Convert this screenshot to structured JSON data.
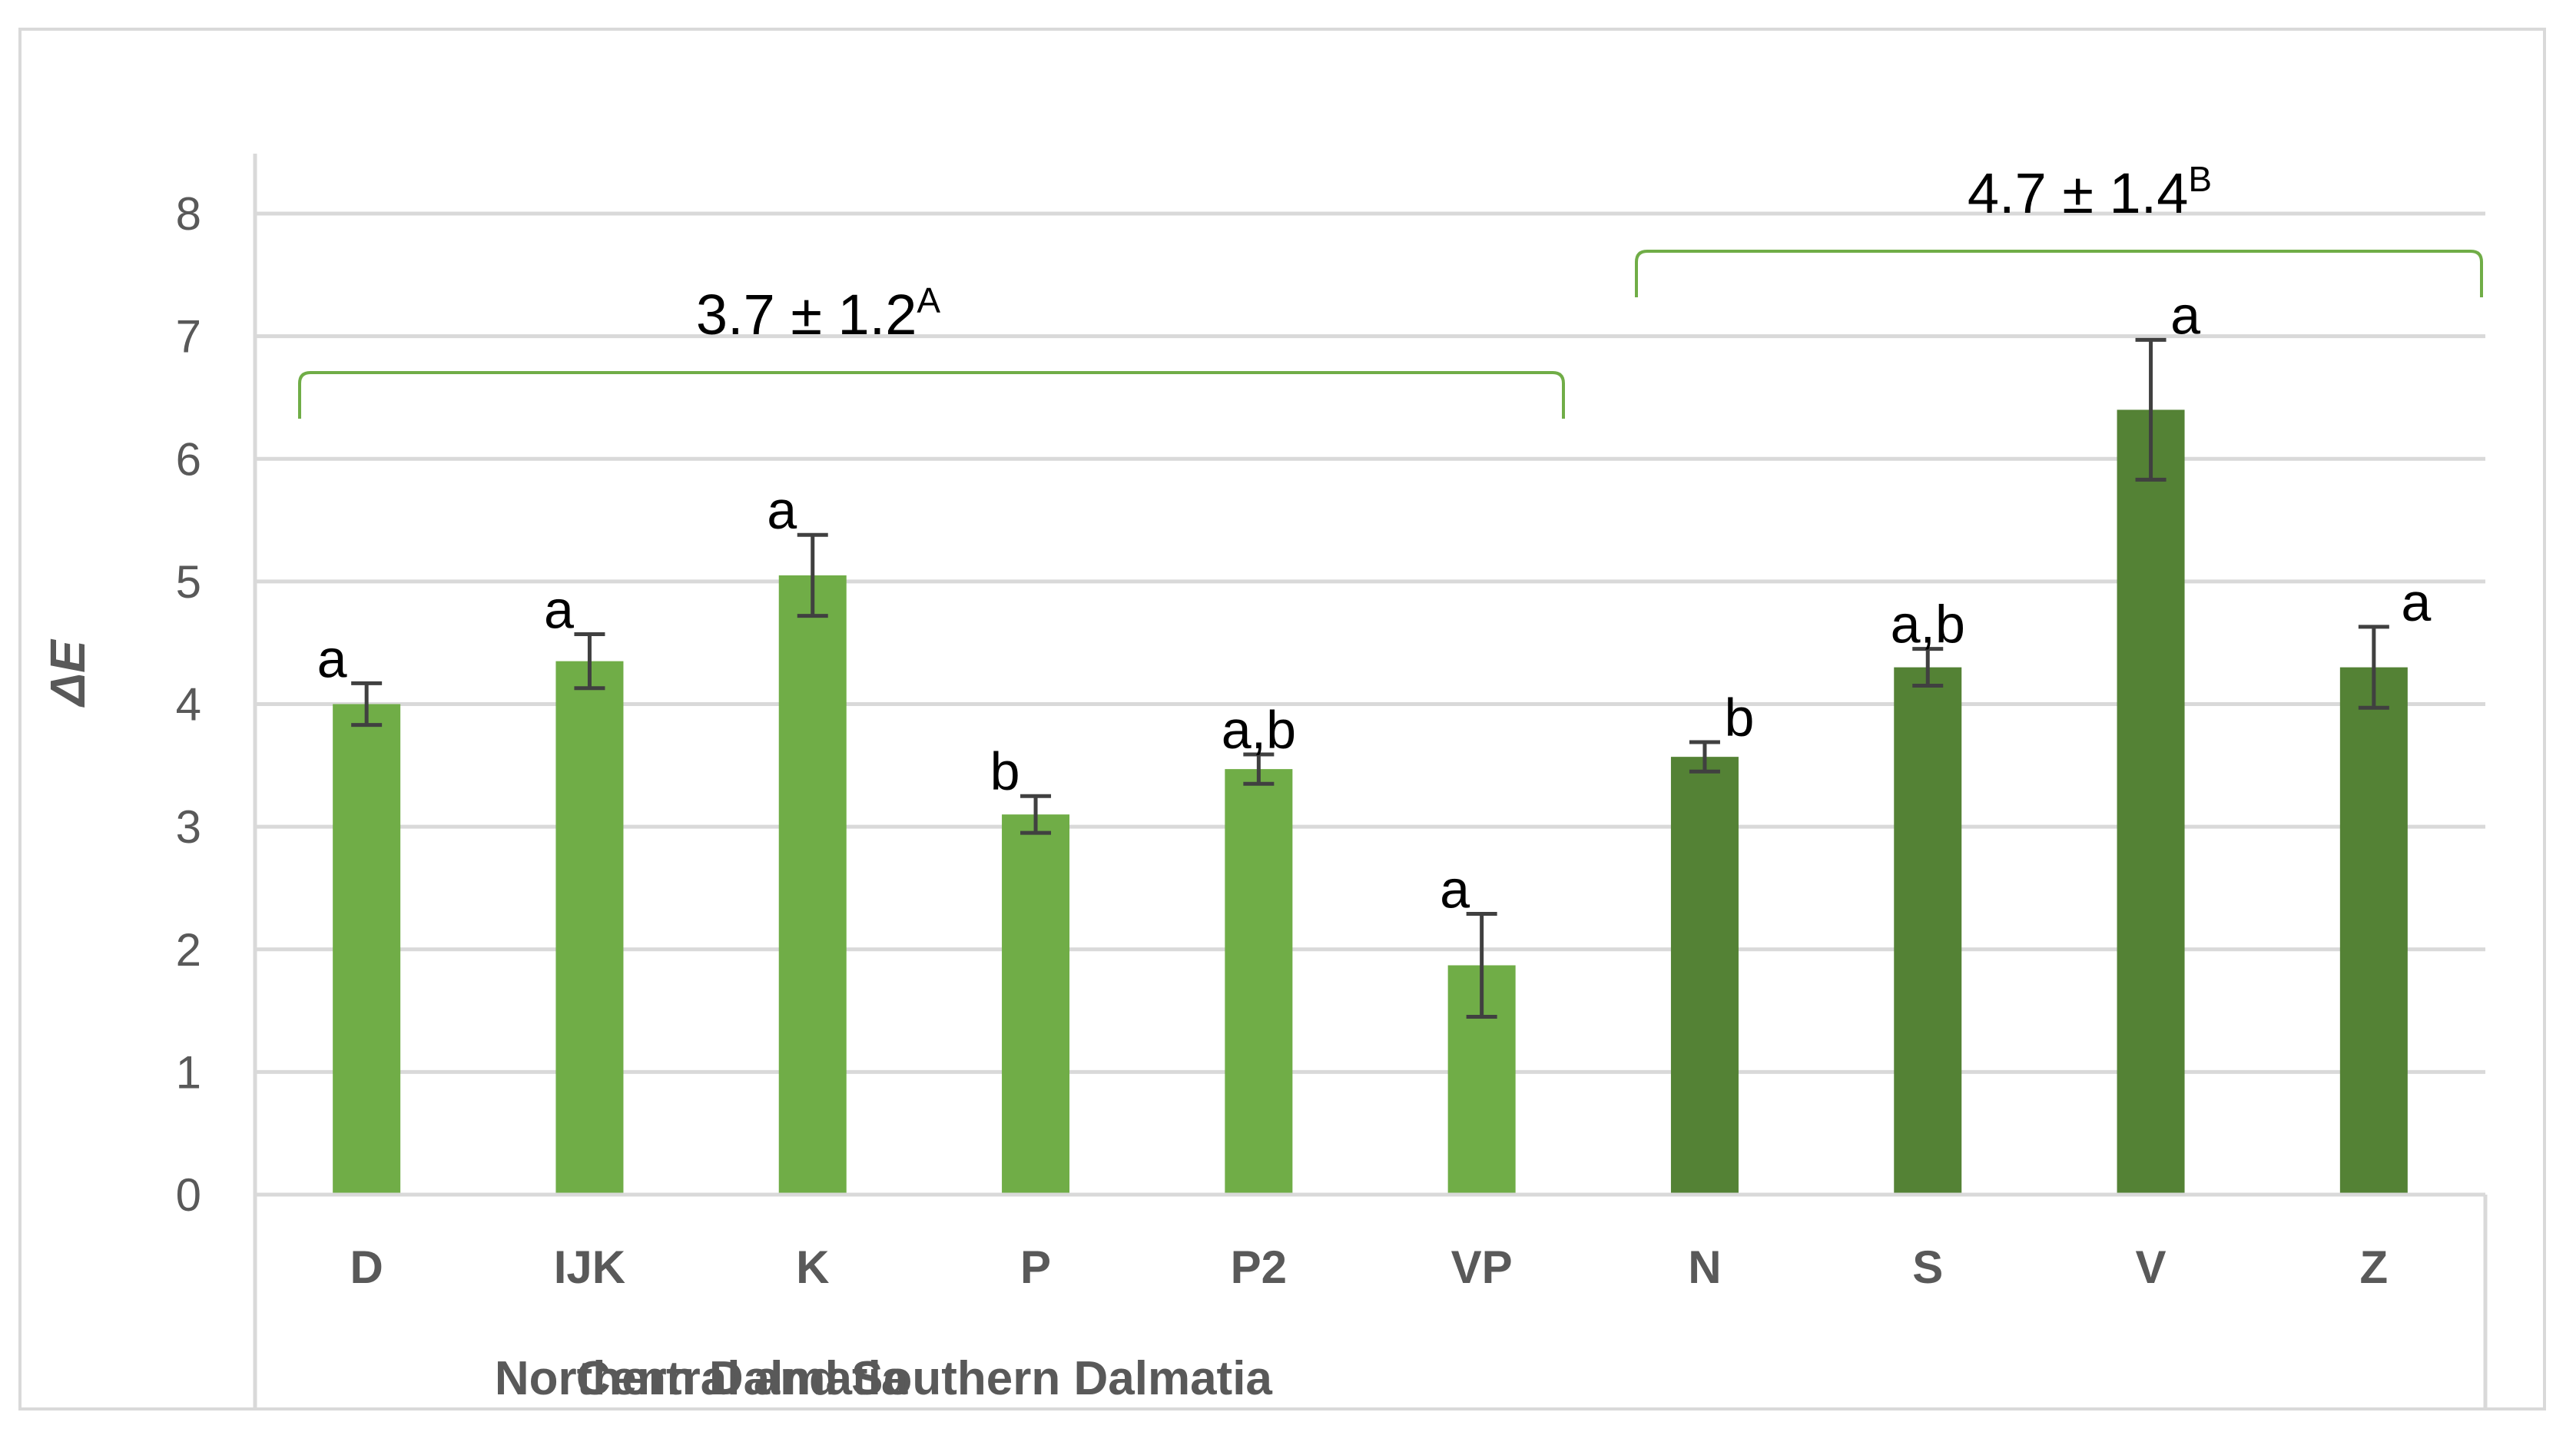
{
  "chart_data": {
    "type": "bar",
    "title": "",
    "xlabel": "",
    "ylabel": "ΔE",
    "ylim": [
      0,
      8
    ],
    "yticks": [
      0,
      1,
      2,
      3,
      4,
      5,
      6,
      7,
      8
    ],
    "grid": true,
    "categories": [
      "D",
      "IJK",
      "K",
      "P",
      "P2",
      "VP",
      "N",
      "S",
      "V",
      "Z"
    ],
    "values": [
      4.0,
      4.35,
      5.05,
      3.1,
      3.47,
      1.87,
      3.57,
      4.3,
      6.4,
      4.3
    ],
    "errors": [
      0.17,
      0.22,
      0.33,
      0.15,
      0.12,
      0.42,
      0.12,
      0.15,
      0.57,
      0.33
    ],
    "significance_labels": [
      "a",
      "a",
      "a",
      "b",
      "a,b",
      "a",
      "b",
      "a,b",
      "a",
      "a"
    ],
    "groups": [
      {
        "name": "Central and Southern Dalmatia",
        "categories": [
          "D",
          "IJK",
          "K",
          "P",
          "P2",
          "VP"
        ],
        "color": "#70ad47",
        "summary": "3.7 ± 1.2",
        "summary_sup": "A"
      },
      {
        "name": "Northern Dalmatia",
        "categories": [
          "N",
          "S",
          "V",
          "Z"
        ],
        "color": "#548235",
        "summary": "4.7 ± 1.4",
        "summary_sup": "B"
      }
    ],
    "bracket_color": "#70ad47",
    "error_bar_color": "#404040",
    "grid_color": "#d9d9d9"
  }
}
